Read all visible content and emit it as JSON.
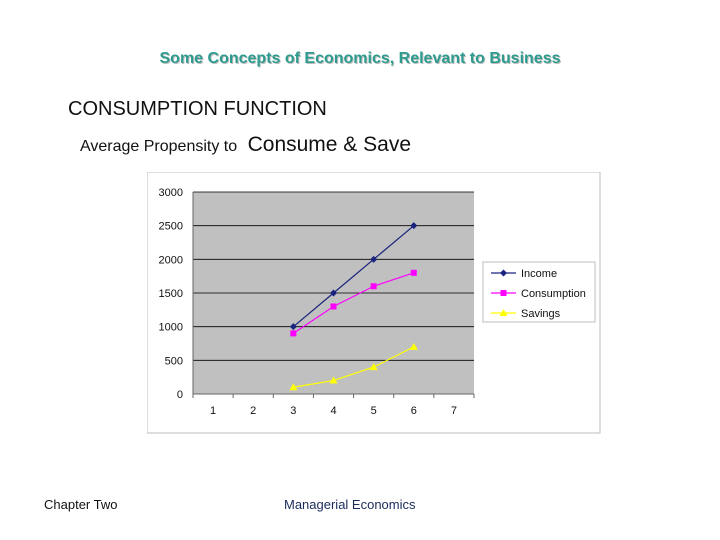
{
  "slide": {
    "title": "Some Concepts of Economics, Relevant to Business",
    "heading": "CONSUMPTION FUNCTION",
    "sub_small": "Average Propensity to",
    "sub_big": "Consume & Save",
    "footer_left": "Chapter Two",
    "footer_center": "Managerial Economics"
  },
  "chart_data": {
    "type": "line",
    "x_ticks": [
      "1",
      "2",
      "3",
      "4",
      "5",
      "6",
      "7"
    ],
    "y_ticks": [
      "0",
      "500",
      "1000",
      "1500",
      "2000",
      "2500",
      "3000"
    ],
    "xlim": [
      0.5,
      7.5
    ],
    "ylim": [
      0,
      3000
    ],
    "grid": true,
    "legend_position": "right",
    "series": [
      {
        "name": "Income",
        "color": "#1a237e",
        "marker": "diamond",
        "x": [
          3,
          4,
          5,
          6
        ],
        "values": [
          1000,
          1500,
          2000,
          2500
        ]
      },
      {
        "name": "Consumption",
        "color": "#ff00ff",
        "marker": "square",
        "x": [
          3,
          4,
          5,
          6
        ],
        "values": [
          900,
          1300,
          1600,
          1800
        ]
      },
      {
        "name": "Savings",
        "color": "#ffff00",
        "marker": "triangle",
        "x": [
          3,
          4,
          5,
          6
        ],
        "values": [
          100,
          200,
          400,
          700
        ]
      }
    ]
  }
}
